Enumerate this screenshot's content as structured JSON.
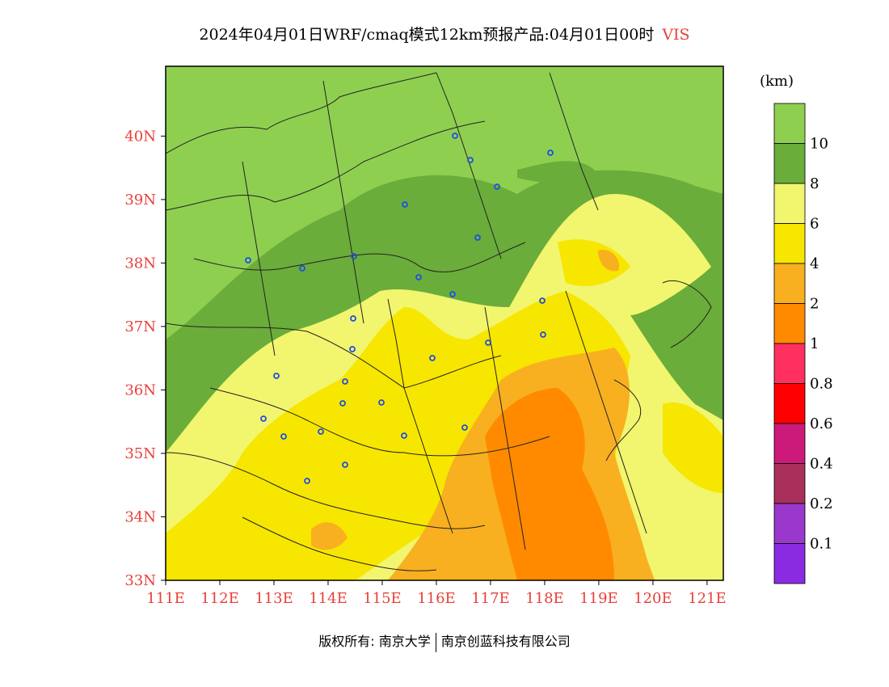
{
  "title": {
    "main": "2024年04月01日WRF/cmaq模式12km预报产品:04月01日00时",
    "variable": "VIS"
  },
  "map": {
    "lat_labels": [
      "40N",
      "39N",
      "38N",
      "37N",
      "36N",
      "35N",
      "34N",
      "33N"
    ],
    "lon_labels": [
      "111E",
      "112E",
      "113E",
      "114E",
      "115E",
      "116E",
      "117E",
      "118E",
      "119E",
      "120E",
      "121E"
    ],
    "lat_values": [
      40,
      39,
      38,
      37,
      36,
      35,
      34,
      33
    ],
    "lon_values": [
      111,
      112,
      113,
      114,
      115,
      116,
      117,
      118,
      119,
      120,
      121
    ],
    "lat_range": [
      33,
      41.1
    ],
    "lon_range": [
      111,
      121.3
    ],
    "label_color": "#e8403a",
    "city_marker_color": "#1f4fe0"
  },
  "colorbar": {
    "unit": "(km)",
    "levels": [
      "10",
      "8",
      "6",
      "4",
      "2",
      "1",
      "0.8",
      "0.6",
      "0.4",
      "0.2",
      "0.1"
    ],
    "colors": [
      "#8fcf50",
      "#6aad3a",
      "#f2f56e",
      "#f7e600",
      "#f8b020",
      "#ff8a00",
      "#ff3060",
      "#ff0000",
      "#cc1a7a",
      "#a8305a",
      "#9a38cc",
      "#8a2be2"
    ]
  },
  "footer": {
    "copyright": "版权所有: 南京大学",
    "company": "南京创蓝科技有限公司"
  }
}
